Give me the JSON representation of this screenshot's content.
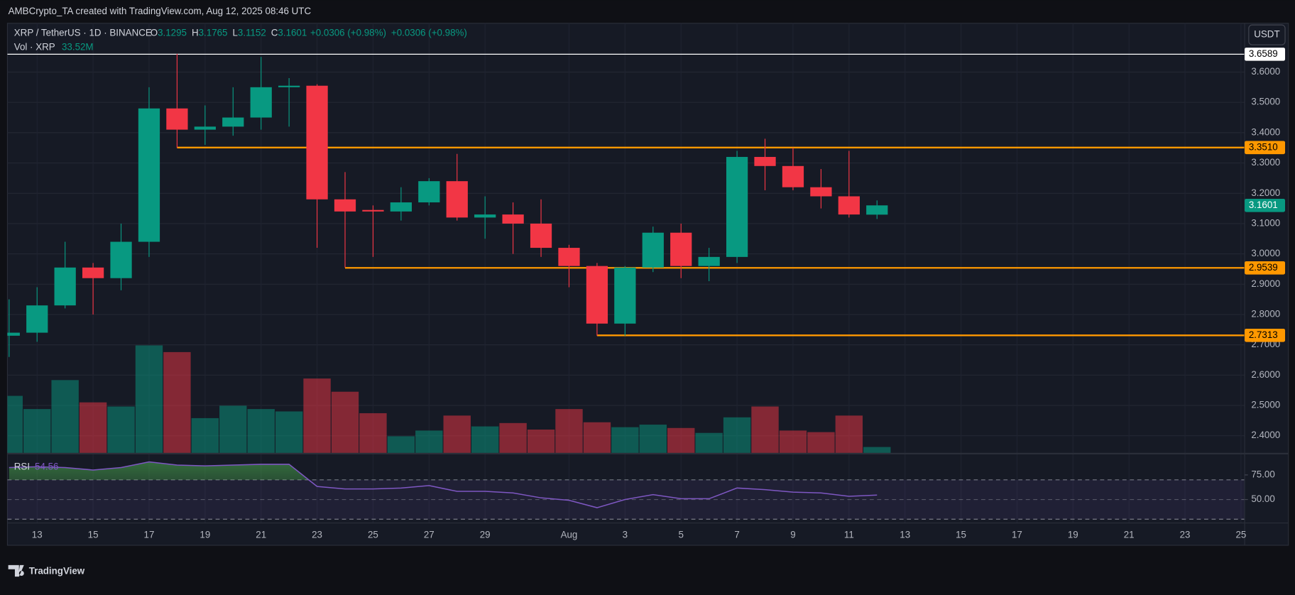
{
  "header": {
    "attribution": "AMBCrypto_TA created with TradingView.com, Aug 12, 2025 08:46 UTC"
  },
  "chart_data": {
    "type": "candlestick",
    "symbol": "XRP / TetherUS · 1D · BINANCE",
    "ohlc_labels": [
      "O",
      "H",
      "L",
      "C"
    ],
    "change": "+0.0306 (+0.98%)",
    "currency": "USDT",
    "categories": [
      null,
      "13",
      null,
      "15",
      null,
      "17",
      null,
      "19",
      null,
      "21",
      null,
      "23",
      null,
      "25",
      null,
      "27",
      null,
      "29",
      null,
      null,
      "Aug",
      null,
      "3",
      null,
      "5",
      null,
      "7",
      null,
      "9",
      null,
      "11",
      null,
      "13",
      null,
      "15",
      null,
      "17",
      null,
      "19",
      null,
      "21",
      null,
      "23",
      null,
      "25"
    ],
    "open": [
      2.73,
      2.74,
      2.83,
      2.955,
      2.92,
      3.04,
      3.48,
      3.41,
      3.42,
      3.45,
      3.55,
      3.555,
      3.18,
      3.145,
      3.14,
      3.17,
      3.24,
      3.12,
      3.13,
      3.1,
      3.02,
      2.96,
      2.77,
      2.955,
      3.07,
      2.96,
      2.99,
      3.32,
      3.29,
      3.22,
      3.19,
      3.1295,
      null,
      null,
      null,
      null,
      null,
      null,
      null,
      null,
      null,
      null,
      null,
      null,
      null
    ],
    "high": [
      2.85,
      2.89,
      3.04,
      2.97,
      3.1,
      3.55,
      3.66,
      3.49,
      3.55,
      3.65,
      3.58,
      3.56,
      3.27,
      3.16,
      3.22,
      3.25,
      3.33,
      3.19,
      3.17,
      3.18,
      3.03,
      2.97,
      2.96,
      3.09,
      3.1,
      3.02,
      3.34,
      3.38,
      3.35,
      3.28,
      3.34,
      3.1765,
      null,
      null,
      null,
      null,
      null,
      null,
      null,
      null,
      null,
      null,
      null,
      null,
      null
    ],
    "low": [
      2.66,
      2.71,
      2.82,
      2.8,
      2.88,
      2.99,
      3.35,
      3.36,
      3.39,
      3.41,
      3.42,
      3.02,
      2.955,
      2.99,
      3.11,
      3.16,
      3.11,
      3.05,
      3.0,
      2.99,
      2.89,
      2.73,
      2.73,
      2.94,
      2.92,
      2.91,
      2.97,
      3.21,
      3.21,
      3.15,
      3.12,
      3.1152,
      null,
      null,
      null,
      null,
      null,
      null,
      null,
      null,
      null,
      null,
      null,
      null,
      null
    ],
    "close": [
      2.74,
      2.83,
      2.955,
      2.92,
      3.04,
      3.48,
      3.41,
      3.42,
      3.45,
      3.55,
      3.555,
      3.18,
      3.14,
      3.14,
      3.17,
      3.24,
      3.12,
      3.13,
      3.1,
      3.02,
      2.96,
      2.77,
      2.955,
      3.07,
      2.96,
      2.99,
      3.32,
      3.29,
      3.22,
      3.19,
      3.13,
      3.1601,
      null,
      null,
      null,
      null,
      null,
      null,
      null,
      null,
      null,
      null,
      null,
      null,
      null
    ],
    "colors": {
      "up": "#089981",
      "down": "#f23645"
    },
    "ylim": [
      2.341,
      3.761
    ],
    "yticks": [
      {
        "value": 2.4,
        "label": "2.4000"
      },
      {
        "value": 2.5,
        "label": "2.5000"
      },
      {
        "value": 2.6,
        "label": "2.6000"
      },
      {
        "value": 2.7,
        "label": "2.7000"
      },
      {
        "value": 2.8,
        "label": "2.8000"
      },
      {
        "value": 2.9,
        "label": "2.9000"
      },
      {
        "value": 3.0,
        "label": "3.0000"
      },
      {
        "value": 3.1,
        "label": "3.1000"
      },
      {
        "value": 3.2,
        "label": "3.2000"
      },
      {
        "value": 3.3,
        "label": "3.3000"
      },
      {
        "value": 3.4,
        "label": "3.4000"
      },
      {
        "value": 3.5,
        "label": "3.5000"
      },
      {
        "value": 3.6,
        "label": "3.6000"
      }
    ],
    "grid": true,
    "levels": [
      {
        "value": 3.6589,
        "color": "#ffffff",
        "full_width": true
      },
      {
        "value": 3.351,
        "label": "3.3510",
        "color": "#ff9800"
      },
      {
        "value": 2.9539,
        "color": "#ff9800"
      },
      {
        "value": 2.7313,
        "color": "#ff9800"
      }
    ],
    "volume": {
      "name": "Vol · XRP",
      "values": [
        293,
        226,
        373,
        260,
        239,
        549,
        515,
        180,
        243,
        226,
        214,
        381,
        314,
        205,
        88,
        117,
        193,
        138,
        155,
        122,
        226,
        159,
        134,
        147,
        130,
        105,
        184,
        239,
        117,
        109,
        193,
        33.52,
        null,
        null,
        null,
        null,
        null,
        null,
        null,
        null,
        null,
        null,
        null,
        null,
        null
      ],
      "value_labels": [
        null,
        null,
        null,
        null,
        null,
        null,
        null,
        null,
        null,
        null,
        null,
        null,
        null,
        null,
        null,
        null,
        null,
        null,
        null,
        null,
        null,
        null,
        null,
        null,
        null,
        null,
        null,
        null,
        null,
        null,
        null,
        "33.52M",
        null,
        null,
        null,
        null,
        null,
        null,
        null,
        null,
        null,
        null,
        null,
        null,
        null
      ]
    },
    "rsi": {
      "name": "RSI",
      "color": "#7e57c2",
      "values": [
        82.5,
        83.3,
        82.5,
        80,
        82.5,
        88.3,
        85,
        84.2,
        85,
        85.8,
        85.8,
        63.3,
        60.8,
        60.8,
        61.7,
        64.2,
        58.3,
        58.3,
        56.7,
        51.7,
        49.2,
        41.7,
        50,
        55,
        50.8,
        50.8,
        61.7,
        60,
        57.5,
        56.7,
        53.3,
        54.56,
        null,
        null,
        null,
        null,
        null,
        null,
        null,
        null,
        null,
        null,
        null,
        null,
        null
      ],
      "ylim": [
        27,
        95
      ],
      "yticks": [
        {
          "value": 75,
          "label": "75.00"
        },
        {
          "value": 50,
          "label": "50.00"
        }
      ],
      "band": [
        30,
        70
      ],
      "midline": 50
    }
  },
  "branding": "TradingView"
}
